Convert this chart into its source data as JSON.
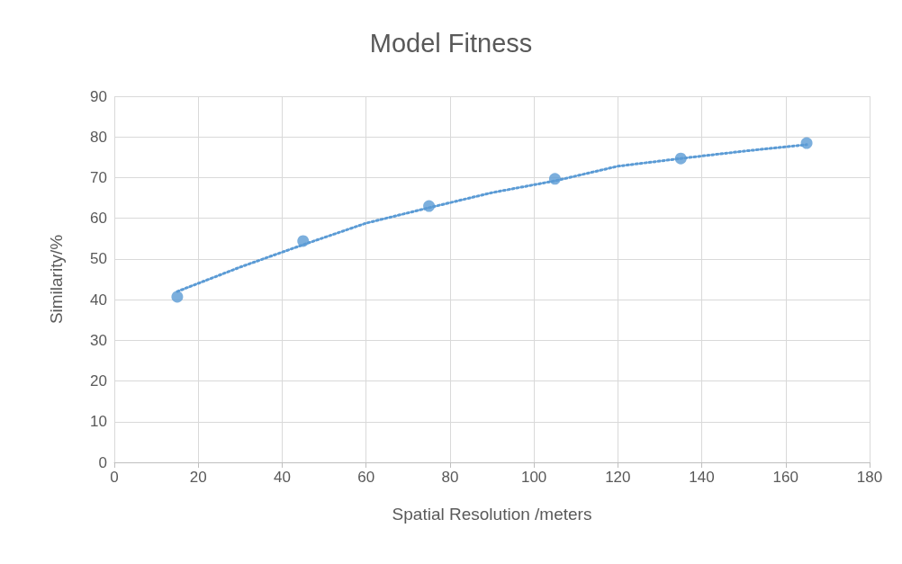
{
  "chart_data": {
    "type": "scatter",
    "title": "Model Fitness",
    "xlabel": "Spatial Resolution /meters",
    "ylabel": "Similarity/%",
    "x": [
      15,
      45,
      75,
      105,
      135,
      165
    ],
    "series": [
      {
        "color": "#5b9bd5",
        "marker": "circle",
        "values": [
          40.7,
          54.4,
          63.0,
          69.7,
          74.7,
          78.5
        ]
      },
      {
        "type": "line",
        "color": "#5b9bd5",
        "marker": "none",
        "line_style": "dotted",
        "x": [
          15,
          30,
          45,
          60,
          75,
          90,
          105,
          120,
          135,
          150,
          165
        ],
        "values": [
          42.0,
          48.0,
          53.5,
          58.8,
          62.6,
          66.3,
          69.2,
          72.8,
          74.7,
          76.5,
          78.1
        ]
      }
    ],
    "xlim": [
      0,
      180
    ],
    "xticks": [
      0,
      20,
      40,
      60,
      80,
      100,
      120,
      140,
      160,
      180
    ],
    "ylim": [
      0,
      90
    ],
    "yticks": [
      0,
      10,
      20,
      30,
      40,
      50,
      60,
      70,
      80,
      90
    ],
    "grid": true
  }
}
